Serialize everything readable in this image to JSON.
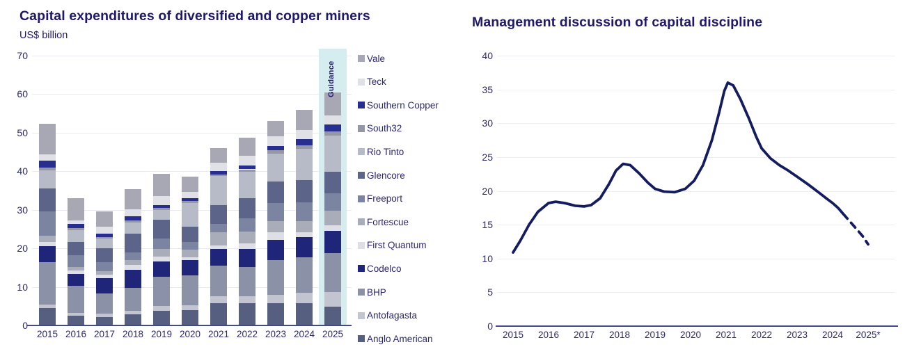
{
  "colors": {
    "title_text": "#1f196b",
    "axis_text": "#2b2a6a",
    "gridline": "#e9e9ef",
    "axis_line": "#434a8a",
    "background": "#ffffff"
  },
  "chart_data": [
    {
      "id": "capex-by-miner",
      "type": "bar",
      "stacked": true,
      "title": "Capital expenditures of diversified and copper miners",
      "subtitle": "US$ billion",
      "ylabel": "US$ billion",
      "categories": [
        "2015",
        "2016",
        "2017",
        "2018",
        "2019",
        "2020",
        "2021",
        "2022",
        "2023",
        "2024",
        "2025"
      ],
      "ylim": [
        0,
        70
      ],
      "yticks": [
        0,
        10,
        20,
        30,
        40,
        50,
        60,
        70
      ],
      "grid": true,
      "legend_position": "right",
      "legend_order_note": "legend lists top-of-stack first; series below are bottom-to-top",
      "guidance": {
        "label": "Guidance",
        "category": "2025",
        "band_color": "#d5edef"
      },
      "series": [
        {
          "name": "Anglo American",
          "color": "#575f81",
          "values": [
            4.5,
            2.5,
            2.2,
            2.8,
            3.8,
            4.0,
            5.7,
            5.7,
            5.8,
            5.7,
            4.8
          ]
        },
        {
          "name": "Antofagasta",
          "color": "#c2c4cf",
          "values": [
            1.0,
            0.8,
            0.9,
            0.9,
            1.2,
            1.3,
            1.8,
            1.9,
            2.1,
            2.7,
            3.9
          ]
        },
        {
          "name": "BHP",
          "color": "#8b92a8",
          "values": [
            11.0,
            7.0,
            5.2,
            6.0,
            7.6,
            7.6,
            8.0,
            7.5,
            9.0,
            9.3,
            10.0
          ]
        },
        {
          "name": "Codelco",
          "color": "#1f2578",
          "values": [
            4.0,
            3.0,
            4.0,
            4.8,
            4.0,
            4.0,
            4.4,
            4.8,
            5.2,
            5.2,
            5.8
          ]
        },
        {
          "name": "First Quantum",
          "color": "#dddfe5",
          "values": [
            1.2,
            0.9,
            0.8,
            1.2,
            1.3,
            0.7,
            0.8,
            1.3,
            2.1,
            1.3,
            1.5
          ]
        },
        {
          "name": "Fortescue",
          "color": "#a9acb9",
          "values": [
            1.5,
            1.0,
            0.9,
            1.2,
            2.0,
            2.0,
            3.5,
            3.1,
            2.8,
            2.9,
            3.8
          ]
        },
        {
          "name": "Freeport",
          "color": "#7b84a1",
          "values": [
            6.3,
            3.0,
            2.5,
            2.0,
            2.6,
            2.0,
            2.1,
            3.5,
            4.8,
            4.8,
            4.5
          ]
        },
        {
          "name": "Glencore",
          "color": "#5d6489",
          "values": [
            6.0,
            3.5,
            3.5,
            4.9,
            4.9,
            4.0,
            5.0,
            5.2,
            5.6,
            5.8,
            5.5
          ]
        },
        {
          "name": "Rio Tinto",
          "color": "#b7bac7",
          "values": [
            4.7,
            3.0,
            2.5,
            2.9,
            2.6,
            6.2,
            7.4,
            6.8,
            7.1,
            8.1,
            9.5
          ]
        },
        {
          "name": "South32",
          "color": "#9597a4",
          "values": [
            0.8,
            0.5,
            0.4,
            0.5,
            0.5,
            0.5,
            0.5,
            0.7,
            1.0,
            1.0,
            1.1
          ]
        },
        {
          "name": "Southern Copper",
          "color": "#272e8f",
          "values": [
            1.8,
            1.1,
            1.0,
            1.1,
            0.7,
            0.8,
            0.9,
            1.0,
            1.0,
            1.5,
            1.8
          ]
        },
        {
          "name": "Teck",
          "color": "#e0e1e6",
          "values": [
            1.5,
            1.0,
            1.7,
            1.9,
            2.4,
            1.6,
            2.2,
            2.6,
            2.6,
            2.4,
            2.3
          ]
        },
        {
          "name": "Vale",
          "color": "#a8a8b4",
          "values": [
            8.0,
            5.7,
            3.9,
            5.2,
            5.8,
            3.9,
            3.7,
            4.7,
            3.9,
            5.3,
            6.0
          ]
        }
      ],
      "totals_estimated": [
        52.3,
        33.0,
        29.5,
        35.4,
        39.4,
        38.6,
        46.0,
        48.8,
        53.0,
        56.0,
        60.5
      ]
    },
    {
      "id": "capital-discipline-mentions",
      "type": "line",
      "title": "Management discussion of capital discipline",
      "x_labels": [
        "2015",
        "2016",
        "2017",
        "2018",
        "2019",
        "2020",
        "2021",
        "2022",
        "2023",
        "2024",
        "2025*"
      ],
      "ylim": [
        0,
        40
      ],
      "yticks": [
        0,
        5,
        10,
        15,
        20,
        25,
        30,
        35,
        40
      ],
      "grid": true,
      "line_color": "#141c60",
      "values_by_year": {
        "2015": 11,
        "2016": 18.2,
        "2017": 17.7,
        "2018": 24,
        "2019": 20,
        "2020": 21.5,
        "2021": 36,
        "2022": 26.3,
        "2023": 22,
        "2024": 18.2,
        "2025*": 12
      },
      "solid_points": [
        [
          2015.0,
          10.9
        ],
        [
          2015.2,
          12.6
        ],
        [
          2015.45,
          15.0
        ],
        [
          2015.7,
          16.9
        ],
        [
          2016.0,
          18.2
        ],
        [
          2016.2,
          18.4
        ],
        [
          2016.45,
          18.2
        ],
        [
          2016.75,
          17.8
        ],
        [
          2017.0,
          17.7
        ],
        [
          2017.2,
          17.9
        ],
        [
          2017.45,
          18.9
        ],
        [
          2017.7,
          21.0
        ],
        [
          2017.9,
          23.0
        ],
        [
          2018.1,
          24.0
        ],
        [
          2018.3,
          23.8
        ],
        [
          2018.55,
          22.6
        ],
        [
          2018.8,
          21.2
        ],
        [
          2019.0,
          20.3
        ],
        [
          2019.25,
          19.9
        ],
        [
          2019.55,
          19.8
        ],
        [
          2019.85,
          20.3
        ],
        [
          2020.1,
          21.5
        ],
        [
          2020.35,
          23.8
        ],
        [
          2020.6,
          27.5
        ],
        [
          2020.8,
          31.5
        ],
        [
          2020.95,
          34.8
        ],
        [
          2021.05,
          36.0
        ],
        [
          2021.2,
          35.6
        ],
        [
          2021.4,
          33.6
        ],
        [
          2021.65,
          30.6
        ],
        [
          2021.85,
          28.0
        ],
        [
          2022.0,
          26.3
        ],
        [
          2022.25,
          24.8
        ],
        [
          2022.5,
          23.8
        ],
        [
          2022.75,
          23.0
        ],
        [
          2023.0,
          22.1
        ],
        [
          2023.3,
          21.0
        ],
        [
          2023.6,
          19.8
        ],
        [
          2023.85,
          18.8
        ],
        [
          2024.0,
          18.2
        ],
        [
          2024.15,
          17.5
        ],
        [
          2024.3,
          16.6
        ]
      ],
      "dashed_points": [
        [
          2024.3,
          16.6
        ],
        [
          2024.5,
          15.4
        ],
        [
          2024.7,
          14.2
        ],
        [
          2024.85,
          13.3
        ],
        [
          2025.0,
          12.1
        ]
      ]
    }
  ]
}
